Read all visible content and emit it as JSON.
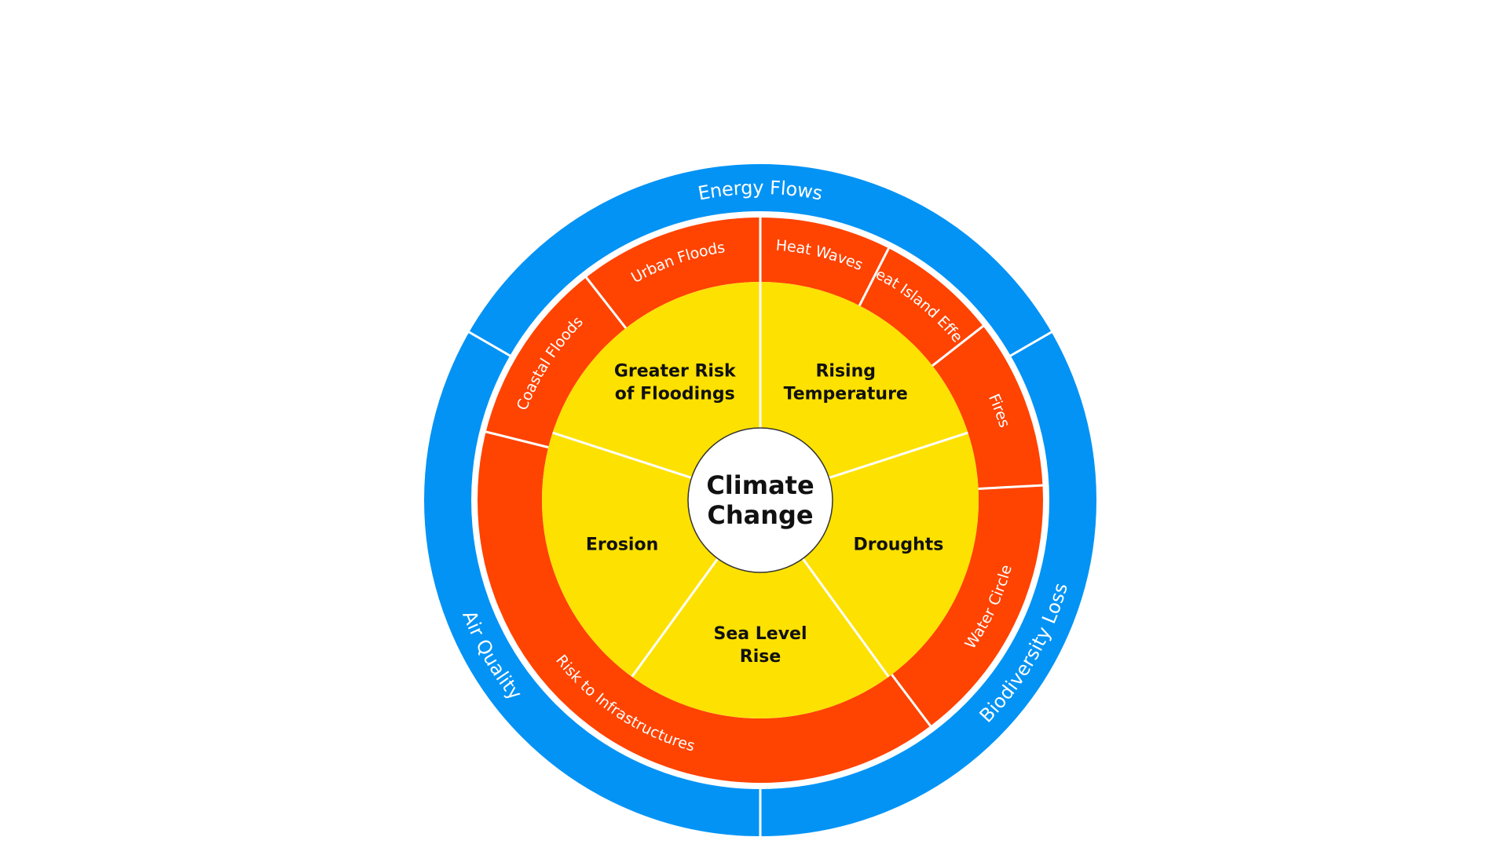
{
  "colors": {
    "outer": "#0393F5",
    "middle": "#FF4300",
    "inner": "#FDE101",
    "center": "#FFFFFF",
    "divider": "#FFFFFF"
  },
  "center": {
    "lines": [
      "Climate",
      "Change"
    ]
  },
  "inner_ring": [
    {
      "key": "greater-risk-of-floodings",
      "lines": [
        "Greater Risk",
        "of Floodings"
      ]
    },
    {
      "key": "rising-temperature",
      "lines": [
        "Rising",
        "Temperature"
      ]
    },
    {
      "key": "droughts",
      "lines": [
        "Droughts"
      ]
    },
    {
      "key": "sea-level-rise",
      "lines": [
        "Sea Level",
        "Rise"
      ]
    },
    {
      "key": "erosion",
      "lines": [
        "Erosion"
      ]
    }
  ],
  "middle_ring": [
    {
      "key": "urban-floods",
      "label": "Urban Floods"
    },
    {
      "key": "heat-waves",
      "label": "Heat Waves"
    },
    {
      "key": "heat-island-effect",
      "label": "Heat Island Effect"
    },
    {
      "key": "fires",
      "label": "Fires"
    },
    {
      "key": "water-circle",
      "label": "Water Circle"
    },
    {
      "key": "risk-to-infrastructures",
      "label": "Risk to Infrastructures"
    },
    {
      "key": "coastal-floods",
      "label": "Coastal Floods"
    }
  ],
  "outer_ring": [
    {
      "key": "energy-flows",
      "label": "Energy Flows"
    },
    {
      "key": "biodiversity-loss",
      "label": "Biodiversity Loss"
    },
    {
      "key": "air-quality",
      "label": "Air Quality"
    }
  ]
}
